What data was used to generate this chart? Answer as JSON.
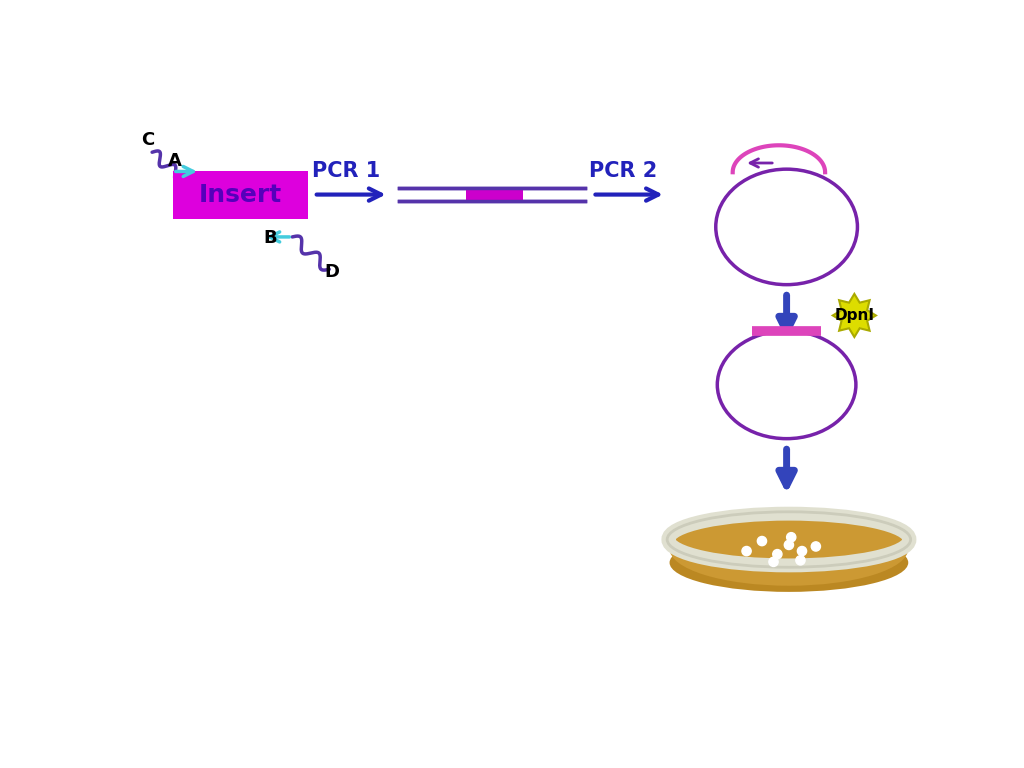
{
  "bg_color": "#ffffff",
  "insert_color": "#dd00dd",
  "insert_text": "Insert",
  "insert_text_color": "#5500bb",
  "pcr1_label": "PCR 1",
  "pcr2_label": "PCR 2",
  "dpni_label": "DpnI",
  "label_color": "#2222bb",
  "arrow_cyan": "#44ccdd",
  "wavy_color": "#5533aa",
  "dna_line_color": "#5533aa",
  "insert_segment_color": "#cc00cc",
  "plasmid_color": "#7722aa",
  "insert_arc_color": "#dd44bb",
  "dpni_bg": "#dddd00",
  "petri_agar": "#cc9933",
  "petri_agar_dark": "#bb8822",
  "petri_rim_color": "#ddddcc",
  "colony_color": "#ffffff",
  "down_arrow_color": "#3344bb"
}
